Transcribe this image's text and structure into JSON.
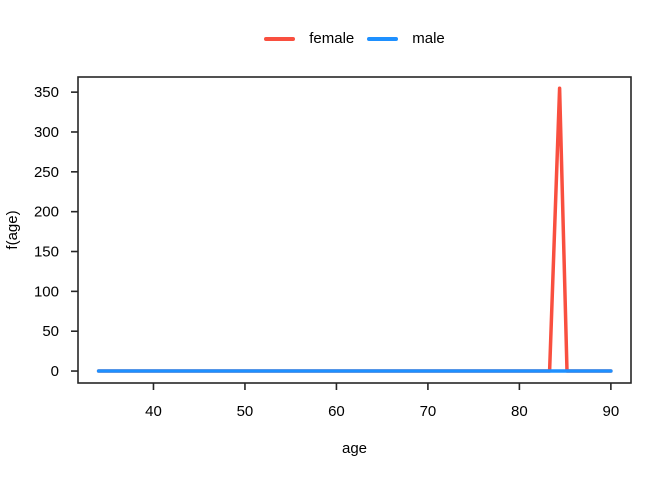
{
  "figure": {
    "background": "#ffffff",
    "frame_color": "#262626",
    "text_color": "#000000"
  },
  "legend": {
    "position": "top-center",
    "entries": [
      {
        "label": "female",
        "color": "#F94F3F"
      },
      {
        "label": "male",
        "color": "#1E90FF"
      }
    ]
  },
  "chart_data": {
    "type": "line",
    "title": "",
    "xlabel": "age",
    "ylabel": "f(age)",
    "xlim": [
      31.75,
      92.2
    ],
    "ylim": [
      -15,
      369
    ],
    "xticks": [
      40,
      50,
      60,
      70,
      80,
      90
    ],
    "yticks": [
      0,
      50,
      100,
      150,
      200,
      250,
      300,
      350
    ],
    "grid": false,
    "legend_position": "top-center",
    "series": [
      {
        "name": "female",
        "color": "#F94F3F",
        "x": [
          34,
          83.3,
          84.4,
          85.2,
          90
        ],
        "y": [
          0,
          0,
          355,
          0,
          0
        ]
      },
      {
        "name": "male",
        "color": "#1E90FF",
        "x": [
          34,
          90
        ],
        "y": [
          0,
          0
        ]
      }
    ]
  }
}
